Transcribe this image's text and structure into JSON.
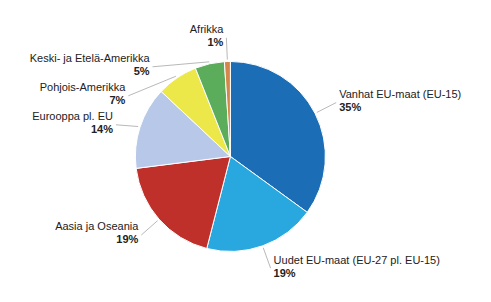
{
  "chart_data": {
    "type": "pie",
    "categories": [
      "Vanhat EU-maat (EU-15)",
      "Uudet EU-maat (EU-27 pl. EU-15)",
      "Aasia ja Oseania",
      "Eurooppa pl. EU",
      "Pohjois-Amerikka",
      "Keski- ja Etelä-Amerikka",
      "Afrikka"
    ],
    "values": [
      35,
      19,
      19,
      14,
      7,
      5,
      1
    ],
    "value_labels": [
      "35%",
      "19%",
      "19%",
      "14%",
      "7%",
      "5%",
      "1%"
    ],
    "colors": [
      "#1B6DB5",
      "#29A8E0",
      "#C0302A",
      "#B8C8E8",
      "#EDE84A",
      "#5BAD5B",
      "#D4874A"
    ],
    "data_labels": true
  }
}
